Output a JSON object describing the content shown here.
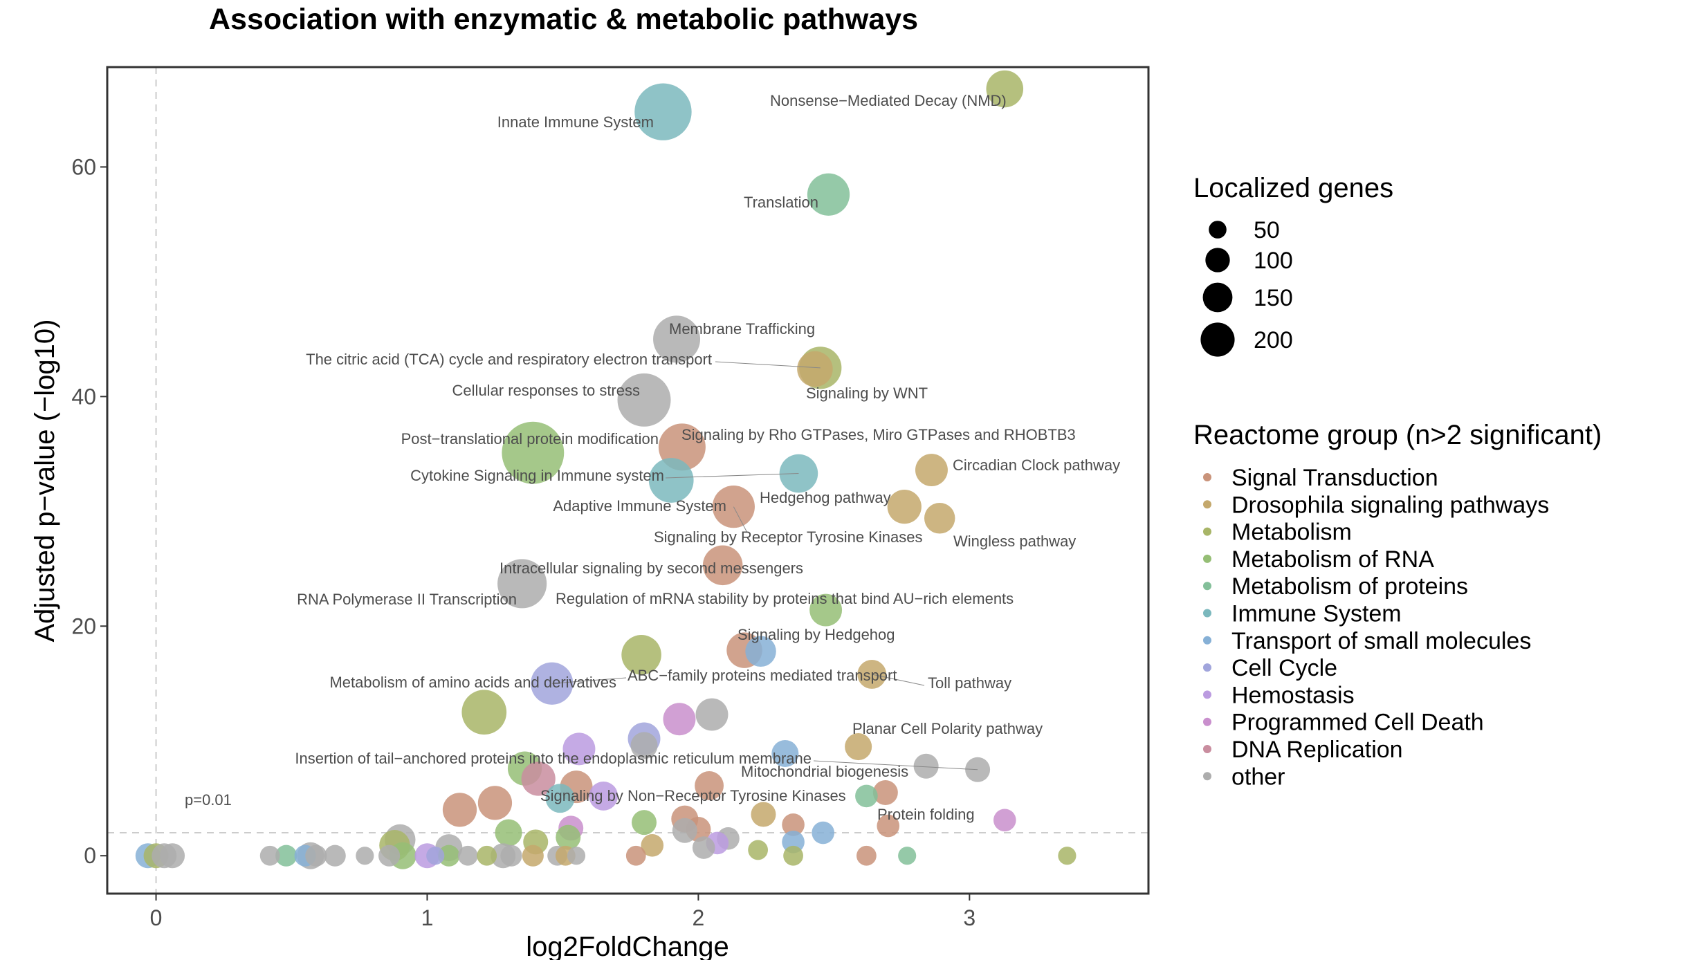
{
  "chart_data": {
    "type": "scatter",
    "title": "Association with enzymatic & metabolic pathways",
    "xlabel": "log2FoldChange",
    "ylabel": "Adjusted p−value (−log10)",
    "xlim": [
      -0.18,
      3.66
    ],
    "ylim": [
      -3.3,
      68.7
    ],
    "xticks": [
      0,
      1,
      2,
      3
    ],
    "yticks": [
      0,
      20,
      40,
      60
    ],
    "grid": false,
    "threshold": {
      "y": 2,
      "label": "p=0.01"
    },
    "size_legend": {
      "title": "Localized genes",
      "sizes": [
        50,
        100,
        150,
        200
      ]
    },
    "color_legend": {
      "title": "Reactome group (n>2 significant)",
      "groups": [
        {
          "name": "Signal Transduction",
          "color": "#c9937a"
        },
        {
          "name": "Drosophila signaling pathways",
          "color": "#c4a86c"
        },
        {
          "name": "Metabolism",
          "color": "#a8b567"
        },
        {
          "name": "Metabolism of RNA",
          "color": "#95be75"
        },
        {
          "name": "Metabolism of proteins",
          "color": "#83bf99"
        },
        {
          "name": "Immune System",
          "color": "#7bb8bd"
        },
        {
          "name": "Transport of small molecules",
          "color": "#86b0d6"
        },
        {
          "name": "Cell Cycle",
          "color": "#a1a5dc"
        },
        {
          "name": "Hemostasis",
          "color": "#bb9be0"
        },
        {
          "name": "Programmed Cell Death",
          "color": "#c98fcd"
        },
        {
          "name": "DNA Replication",
          "color": "#c98d9f"
        },
        {
          "name": "other",
          "color": "#adadad"
        }
      ]
    },
    "points": [
      {
        "x": 3.13,
        "y": 66.8,
        "size": 60,
        "group": "Metabolism",
        "label": "Nonsense−Mediated Decay (NMD)"
      },
      {
        "x": 1.87,
        "y": 64.8,
        "size": 150,
        "group": "Immune System",
        "label": "Innate Immune System"
      },
      {
        "x": 2.48,
        "y": 57.6,
        "size": 80,
        "group": "Metabolism of proteins",
        "label": "Translation"
      },
      {
        "x": 1.92,
        "y": 45.0,
        "size": 100,
        "group": "other",
        "label": "Membrane Trafficking"
      },
      {
        "x": 2.45,
        "y": 42.5,
        "size": 80,
        "group": "Metabolism",
        "label": "The citric acid (TCA) cycle and respiratory electron transport"
      },
      {
        "x": 2.43,
        "y": 42.4,
        "size": 55,
        "group": "Drosophila signaling pathways",
        "label": "Signaling by WNT"
      },
      {
        "x": 1.8,
        "y": 39.7,
        "size": 130,
        "group": "other",
        "label": "Cellular responses to stress"
      },
      {
        "x": 1.39,
        "y": 35.1,
        "size": 180,
        "group": "Metabolism of RNA",
        "label": "Post−translational protein modification"
      },
      {
        "x": 1.94,
        "y": 35.6,
        "size": 100,
        "group": "Signal Transduction",
        "label": "Signaling by Rho GTPases, Miro GTPases and RHOBTB3"
      },
      {
        "x": 2.86,
        "y": 33.6,
        "size": 45,
        "group": "Drosophila signaling pathways",
        "label": "Circadian Clock pathway"
      },
      {
        "x": 2.37,
        "y": 33.3,
        "size": 65,
        "group": "Immune System",
        "label": "Cytokine Signaling in Immune system"
      },
      {
        "x": 1.9,
        "y": 32.7,
        "size": 90,
        "group": "Immune System",
        "label": "Adaptive Immune System"
      },
      {
        "x": 2.76,
        "y": 30.4,
        "size": 50,
        "group": "Drosophila signaling pathways",
        "label": "Hedgehog pathway"
      },
      {
        "x": 2.13,
        "y": 30.4,
        "size": 80,
        "group": "Signal Transduction",
        "label": "Signaling by Receptor Tyrosine Kinases"
      },
      {
        "x": 2.89,
        "y": 29.4,
        "size": 40,
        "group": "Drosophila signaling pathways",
        "label": "Wingless pathway"
      },
      {
        "x": 2.09,
        "y": 25.3,
        "size": 70,
        "group": "Signal Transduction",
        "label": "Intracellular signaling by second messengers"
      },
      {
        "x": 1.35,
        "y": 23.7,
        "size": 110,
        "group": "other",
        "label": "RNA Polymerase II Transcription"
      },
      {
        "x": 2.47,
        "y": 21.4,
        "size": 45,
        "group": "Metabolism of RNA",
        "label": "Regulation of mRNA stability by proteins that bind AU−rich elements"
      },
      {
        "x": 2.17,
        "y": 17.9,
        "size": 55,
        "group": "Signal Transduction",
        "label": "Signaling by Hedgehog"
      },
      {
        "x": 2.23,
        "y": 17.8,
        "size": 40,
        "group": "Transport of small molecules"
      },
      {
        "x": 1.79,
        "y": 17.5,
        "size": 70,
        "group": "Metabolism"
      },
      {
        "x": 2.64,
        "y": 15.8,
        "size": 35,
        "group": "Drosophila signaling pathways",
        "label": "Toll pathway"
      },
      {
        "x": 1.46,
        "y": 15.0,
        "size": 80,
        "group": "Cell Cycle",
        "label": "ABC−family proteins mediated transport"
      },
      {
        "x": 1.21,
        "y": 12.5,
        "size": 90,
        "group": "Metabolism",
        "label": "Metabolism of amino acids and derivatives"
      },
      {
        "x": 2.05,
        "y": 12.3,
        "size": 45,
        "group": "other"
      },
      {
        "x": 1.93,
        "y": 11.9,
        "size": 45,
        "group": "Programmed Cell Death"
      },
      {
        "x": 1.8,
        "y": 10.2,
        "size": 45,
        "group": "Cell Cycle"
      },
      {
        "x": 1.8,
        "y": 9.6,
        "size": 30,
        "group": "other"
      },
      {
        "x": 2.59,
        "y": 9.5,
        "size": 30,
        "group": "Drosophila signaling pathways",
        "label": "Planar Cell Polarity pathway"
      },
      {
        "x": 1.56,
        "y": 9.3,
        "size": 45,
        "group": "Hemostasis"
      },
      {
        "x": 2.32,
        "y": 8.9,
        "size": 30,
        "group": "Transport of small molecules"
      },
      {
        "x": 2.84,
        "y": 7.8,
        "size": 25,
        "group": "other"
      },
      {
        "x": 3.03,
        "y": 7.5,
        "size": 25,
        "group": "other",
        "label": "Insertion of tail−anchored proteins into the endoplasmic reticulum membrane"
      },
      {
        "x": 1.36,
        "y": 7.6,
        "size": 50,
        "group": "Metabolism of RNA"
      },
      {
        "x": 1.41,
        "y": 6.7,
        "size": 50,
        "group": "DNA Replication"
      },
      {
        "x": 1.55,
        "y": 6.0,
        "size": 45,
        "group": "Signal Transduction"
      },
      {
        "x": 2.04,
        "y": 6.1,
        "size": 35,
        "group": "Signal Transduction"
      },
      {
        "x": 2.69,
        "y": 5.5,
        "size": 25,
        "group": "Signal Transduction"
      },
      {
        "x": 2.62,
        "y": 5.2,
        "size": 20,
        "group": "Metabolism of proteins",
        "label": "Mitochondrial biogenesis"
      },
      {
        "x": 1.49,
        "y": 5.0,
        "size": 35,
        "group": "Immune System"
      },
      {
        "x": 1.65,
        "y": 5.2,
        "size": 35,
        "group": "Hemostasis",
        "label": "Signaling by Non−Receptor Tyrosine Kinases"
      },
      {
        "x": 1.25,
        "y": 4.6,
        "size": 50,
        "group": "Signal Transduction"
      },
      {
        "x": 1.12,
        "y": 4.0,
        "size": 50,
        "group": "Signal Transduction"
      },
      {
        "x": 2.24,
        "y": 3.6,
        "size": 25,
        "group": "Drosophila signaling pathways"
      },
      {
        "x": 1.95,
        "y": 3.2,
        "size": 30,
        "group": "Signal Transduction"
      },
      {
        "x": 1.8,
        "y": 2.9,
        "size": 25,
        "group": "Metabolism of RNA"
      },
      {
        "x": 2.7,
        "y": 2.6,
        "size": 20,
        "group": "Signal Transduction",
        "label": "Protein folding"
      },
      {
        "x": 3.13,
        "y": 3.1,
        "size": 20,
        "group": "Programmed Cell Death"
      },
      {
        "x": 2.0,
        "y": 2.3,
        "size": 25,
        "group": "Signal Transduction"
      },
      {
        "x": 1.95,
        "y": 2.2,
        "size": 25,
        "group": "other"
      },
      {
        "x": 2.35,
        "y": 2.7,
        "size": 20,
        "group": "Signal Transduction"
      },
      {
        "x": 1.53,
        "y": 2.4,
        "size": 25,
        "group": "Programmed Cell Death"
      },
      {
        "x": 1.3,
        "y": 2.0,
        "size": 30,
        "group": "Metabolism of RNA"
      },
      {
        "x": 2.46,
        "y": 2.0,
        "size": 20,
        "group": "Transport of small molecules"
      },
      {
        "x": 0.9,
        "y": 1.4,
        "size": 40,
        "group": "other"
      },
      {
        "x": 1.52,
        "y": 1.6,
        "size": 25,
        "group": "Metabolism of RNA"
      },
      {
        "x": 2.11,
        "y": 1.5,
        "size": 20,
        "group": "other"
      },
      {
        "x": 0.88,
        "y": 0.9,
        "size": 40,
        "group": "Metabolism"
      },
      {
        "x": 1.4,
        "y": 1.2,
        "size": 25,
        "group": "Metabolism"
      },
      {
        "x": 2.07,
        "y": 1.1,
        "size": 20,
        "group": "Hemostasis"
      },
      {
        "x": 2.35,
        "y": 1.2,
        "size": 20,
        "group": "Transport of small molecules"
      },
      {
        "x": 1.08,
        "y": 0.7,
        "size": 30,
        "group": "other"
      },
      {
        "x": 1.83,
        "y": 0.9,
        "size": 20,
        "group": "Drosophila signaling pathways"
      },
      {
        "x": 2.02,
        "y": 0.7,
        "size": 20,
        "group": "other"
      },
      {
        "x": 2.22,
        "y": 0.5,
        "size": 15,
        "group": "Metabolism"
      },
      {
        "x": 0.91,
        "y": 0.0,
        "size": 30,
        "group": "Metabolism of RNA"
      },
      {
        "x": 0.57,
        "y": 0.0,
        "size": 30,
        "group": "other"
      },
      {
        "x": -0.03,
        "y": 0.0,
        "size": 25,
        "group": "Transport of small molecules"
      },
      {
        "x": 0.0,
        "y": 0.0,
        "size": 25,
        "group": "Metabolism"
      },
      {
        "x": 0.03,
        "y": 0.0,
        "size": 25,
        "group": "other"
      },
      {
        "x": 0.06,
        "y": 0.0,
        "size": 25,
        "group": "other"
      },
      {
        "x": 0.42,
        "y": 0.0,
        "size": 15,
        "group": "other"
      },
      {
        "x": 0.48,
        "y": 0.0,
        "size": 18,
        "group": "Metabolism of proteins"
      },
      {
        "x": 0.55,
        "y": 0.0,
        "size": 18,
        "group": "Transport of small molecules"
      },
      {
        "x": 0.59,
        "y": 0.0,
        "size": 18,
        "group": "other"
      },
      {
        "x": 0.66,
        "y": 0.0,
        "size": 18,
        "group": "other"
      },
      {
        "x": 0.77,
        "y": 0.0,
        "size": 12,
        "group": "other"
      },
      {
        "x": 0.86,
        "y": 0.0,
        "size": 18,
        "group": "other"
      },
      {
        "x": 1.0,
        "y": 0.0,
        "size": 25,
        "group": "Hemostasis"
      },
      {
        "x": 1.03,
        "y": 0.0,
        "size": 12,
        "group": "Cell Cycle"
      },
      {
        "x": 1.08,
        "y": 0.0,
        "size": 18,
        "group": "Metabolism of RNA"
      },
      {
        "x": 1.15,
        "y": 0.0,
        "size": 15,
        "group": "other"
      },
      {
        "x": 1.22,
        "y": 0.0,
        "size": 15,
        "group": "Metabolism"
      },
      {
        "x": 1.28,
        "y": 0.0,
        "size": 25,
        "group": "other"
      },
      {
        "x": 1.31,
        "y": 0.0,
        "size": 18,
        "group": "other"
      },
      {
        "x": 1.39,
        "y": 0.0,
        "size": 18,
        "group": "Drosophila signaling pathways"
      },
      {
        "x": 1.48,
        "y": 0.0,
        "size": 15,
        "group": "other"
      },
      {
        "x": 1.51,
        "y": 0.0,
        "size": 15,
        "group": "Drosophila signaling pathways"
      },
      {
        "x": 1.55,
        "y": 0.0,
        "size": 12,
        "group": "other"
      },
      {
        "x": 1.77,
        "y": 0.0,
        "size": 15,
        "group": "Signal Transduction"
      },
      {
        "x": 2.35,
        "y": 0.0,
        "size": 15,
        "group": "Metabolism"
      },
      {
        "x": 2.62,
        "y": 0.0,
        "size": 15,
        "group": "Signal Transduction"
      },
      {
        "x": 2.77,
        "y": 0.0,
        "size": 12,
        "group": "Metabolism of proteins"
      },
      {
        "x": 3.36,
        "y": 0.0,
        "size": 12,
        "group": "Metabolism"
      }
    ]
  }
}
